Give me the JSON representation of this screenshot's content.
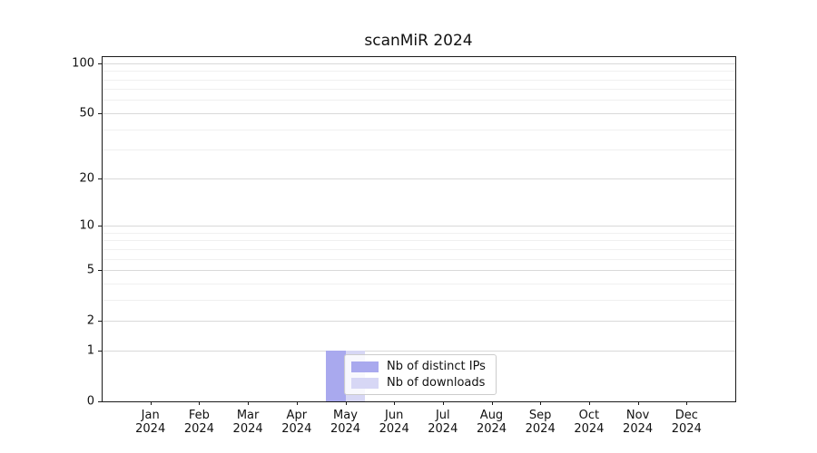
{
  "figure": {
    "title": "scanMiR 2024",
    "background": "#ffffff"
  },
  "chart_data": {
    "type": "bar",
    "title": "scanMiR 2024",
    "categories": [
      "Jan 2024",
      "Feb 2024",
      "Mar 2024",
      "Apr 2024",
      "May 2024",
      "Jun 2024",
      "Jul 2024",
      "Aug 2024",
      "Sep 2024",
      "Oct 2024",
      "Nov 2024",
      "Dec 2024"
    ],
    "x_year_line": "2024",
    "series": [
      {
        "name": "Nb of distinct IPs",
        "color": "#a9a9ee",
        "values": [
          0,
          0,
          0,
          0,
          1,
          0,
          0,
          0,
          0,
          0,
          0,
          0
        ]
      },
      {
        "name": "Nb of downloads",
        "color": "#d7d7f5",
        "values": [
          0,
          0,
          0,
          0,
          1,
          0,
          0,
          0,
          0,
          0,
          0,
          0
        ]
      }
    ],
    "xlabel": "",
    "ylabel": "",
    "y_axis": {
      "scale": "log1p",
      "ticks": [
        0,
        1,
        2,
        5,
        10,
        20,
        50,
        100
      ],
      "minor_ticks": [
        3,
        4,
        6,
        7,
        8,
        9,
        30,
        40,
        60,
        70,
        80,
        90
      ],
      "ylim": [
        0,
        110
      ]
    },
    "grid": {
      "horizontal": true,
      "vertical": false,
      "major_color": "#d9d9d9",
      "minor_color": "#f0f0f0"
    },
    "legend": {
      "position": "bottom-center-inside",
      "entries": [
        "Nb of distinct IPs",
        "Nb of downloads"
      ]
    },
    "colors": {
      "axis": "#1a1a1a",
      "text": "#111111"
    }
  }
}
